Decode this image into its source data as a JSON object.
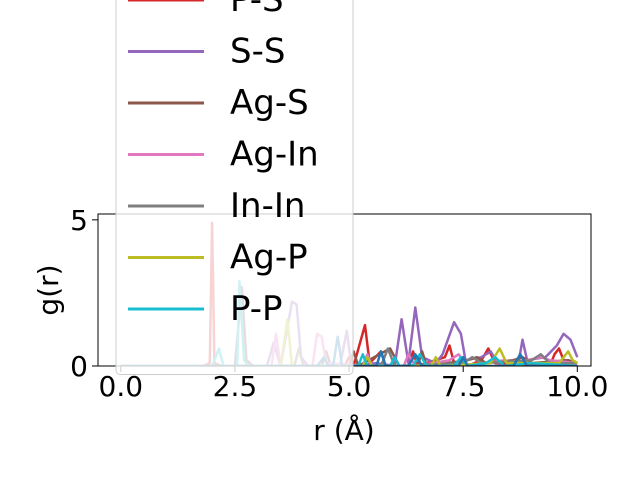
{
  "chart_data": {
    "type": "line",
    "xlabel": "r (Å)",
    "ylabel": "g(r)",
    "xlim": [
      -0.5,
      10.3
    ],
    "ylim": [
      0,
      5.2
    ],
    "xticks": [
      "0.0",
      "2.5",
      "5.0",
      "7.5",
      "10.0"
    ],
    "xtick_values": [
      0,
      2.5,
      5.0,
      7.5,
      10.0
    ],
    "yticks": [
      "0",
      "5"
    ],
    "ytick_values": [
      0,
      5
    ],
    "legend_placement": "upper-left, extends above axes",
    "grid": false,
    "series": [
      {
        "name": "P-S",
        "color": "#d62728",
        "points": [
          [
            0,
            0
          ],
          [
            1.8,
            0
          ],
          [
            1.95,
            0.1
          ],
          [
            2.0,
            4.9
          ],
          [
            2.05,
            0.1
          ],
          [
            2.2,
            0
          ],
          [
            4.9,
            0
          ],
          [
            5.0,
            0.3
          ],
          [
            5.1,
            0
          ],
          [
            5.35,
            1.4
          ],
          [
            5.45,
            0.1
          ],
          [
            5.7,
            0.5
          ],
          [
            5.8,
            0
          ],
          [
            6.3,
            0
          ],
          [
            6.4,
            0.5
          ],
          [
            6.5,
            0
          ],
          [
            7.1,
            0.3
          ],
          [
            7.2,
            0.7
          ],
          [
            7.3,
            0.1
          ],
          [
            7.6,
            0
          ],
          [
            7.9,
            0.2
          ],
          [
            8.05,
            0.6
          ],
          [
            8.2,
            0.1
          ],
          [
            9.4,
            0
          ],
          [
            9.5,
            0.4
          ],
          [
            9.6,
            0.6
          ],
          [
            9.7,
            0.2
          ],
          [
            10,
            0.1
          ]
        ]
      },
      {
        "name": "S-S",
        "color": "#9467bd",
        "points": [
          [
            0,
            0
          ],
          [
            3.2,
            0
          ],
          [
            3.35,
            0.8
          ],
          [
            3.5,
            0
          ],
          [
            3.75,
            2.2
          ],
          [
            3.85,
            2.1
          ],
          [
            3.95,
            0.3
          ],
          [
            4.1,
            0
          ],
          [
            4.8,
            0
          ],
          [
            4.95,
            1.2
          ],
          [
            5.05,
            0
          ],
          [
            5.6,
            0.1
          ],
          [
            6.0,
            0
          ],
          [
            6.15,
            1.6
          ],
          [
            6.3,
            0.1
          ],
          [
            6.45,
            2.0
          ],
          [
            6.6,
            0.3
          ],
          [
            6.9,
            0.1
          ],
          [
            7.05,
            0.4
          ],
          [
            7.3,
            1.5
          ],
          [
            7.45,
            1.1
          ],
          [
            7.55,
            0.2
          ],
          [
            7.9,
            0.3
          ],
          [
            8.1,
            0.5
          ],
          [
            8.3,
            0
          ],
          [
            8.7,
            0
          ],
          [
            8.8,
            0.9
          ],
          [
            8.9,
            0.2
          ],
          [
            9.3,
            0.3
          ],
          [
            9.55,
            0.7
          ],
          [
            9.7,
            1.1
          ],
          [
            9.85,
            0.9
          ],
          [
            10,
            0.3
          ]
        ]
      },
      {
        "name": "Ag-S",
        "color": "#8c564b",
        "points": [
          [
            0,
            0
          ],
          [
            2.5,
            0
          ],
          [
            2.65,
            2.7
          ],
          [
            2.75,
            0.2
          ],
          [
            2.9,
            0
          ],
          [
            4.4,
            0
          ],
          [
            4.5,
            0.5
          ],
          [
            4.6,
            0
          ],
          [
            5.0,
            0
          ],
          [
            5.1,
            0.5
          ],
          [
            5.2,
            0
          ],
          [
            5.9,
            0.6
          ],
          [
            6.1,
            0
          ],
          [
            6.5,
            0
          ],
          [
            6.6,
            0.5
          ],
          [
            6.7,
            0
          ],
          [
            7.6,
            0.2
          ],
          [
            7.8,
            0.3
          ],
          [
            8.0,
            0.1
          ],
          [
            8.6,
            0.2
          ],
          [
            8.8,
            0.3
          ],
          [
            9.0,
            0.1
          ],
          [
            9.8,
            0.2
          ],
          [
            10,
            0.1
          ]
        ]
      },
      {
        "name": "Ag-In",
        "color": "#e377c2",
        "points": [
          [
            0,
            0
          ],
          [
            3.3,
            0
          ],
          [
            3.4,
            1.1
          ],
          [
            3.5,
            0
          ],
          [
            4.2,
            0
          ],
          [
            4.3,
            1.1
          ],
          [
            4.4,
            1.0
          ],
          [
            4.5,
            0.1
          ],
          [
            5.3,
            0
          ],
          [
            5.4,
            0.4
          ],
          [
            5.5,
            0
          ],
          [
            6.2,
            0
          ],
          [
            6.3,
            0.4
          ],
          [
            6.45,
            0
          ],
          [
            7.2,
            0.2
          ],
          [
            7.4,
            0.4
          ],
          [
            7.6,
            0
          ],
          [
            8.4,
            0.2
          ],
          [
            8.6,
            0.1
          ],
          [
            9.2,
            0.3
          ],
          [
            9.4,
            0.2
          ],
          [
            10,
            0.1
          ]
        ]
      },
      {
        "name": "In-In",
        "color": "#7f7f7f",
        "points": [
          [
            0,
            0
          ],
          [
            3.8,
            0
          ],
          [
            3.9,
            0.6
          ],
          [
            4.0,
            0
          ],
          [
            5.7,
            0
          ],
          [
            5.85,
            0.6
          ],
          [
            6.0,
            0
          ],
          [
            7.5,
            0.1
          ],
          [
            7.7,
            0.3
          ],
          [
            7.9,
            0.1
          ],
          [
            9.0,
            0.2
          ],
          [
            9.2,
            0.4
          ],
          [
            9.4,
            0.1
          ],
          [
            10,
            0.1
          ]
        ]
      },
      {
        "name": "Ag-P",
        "color": "#bcbd22",
        "points": [
          [
            0,
            0
          ],
          [
            3.5,
            0
          ],
          [
            3.65,
            1.6
          ],
          [
            3.75,
            0
          ],
          [
            5.3,
            0
          ],
          [
            5.4,
            0.3
          ],
          [
            5.5,
            0
          ],
          [
            6.8,
            0
          ],
          [
            6.9,
            0.3
          ],
          [
            7.0,
            0
          ],
          [
            8.1,
            0.1
          ],
          [
            8.3,
            0.6
          ],
          [
            8.45,
            0.1
          ],
          [
            9.6,
            0.1
          ],
          [
            9.8,
            0.5
          ],
          [
            9.9,
            0.2
          ],
          [
            10,
            0.1
          ]
        ]
      },
      {
        "name": "P-P",
        "color": "#17becf",
        "points": [
          [
            0,
            0
          ],
          [
            2.0,
            0
          ],
          [
            2.15,
            0.6
          ],
          [
            2.25,
            0
          ],
          [
            2.55,
            0
          ],
          [
            2.6,
            2.9
          ],
          [
            2.7,
            0.2
          ],
          [
            2.8,
            0
          ],
          [
            5.2,
            0
          ],
          [
            5.3,
            0.4
          ],
          [
            5.4,
            0
          ],
          [
            5.9,
            0
          ],
          [
            6.0,
            0.3
          ],
          [
            6.1,
            0
          ],
          [
            6.4,
            0
          ],
          [
            6.55,
            0.4
          ],
          [
            6.7,
            0
          ],
          [
            7.3,
            0
          ],
          [
            7.45,
            0.3
          ],
          [
            7.6,
            0
          ],
          [
            8.0,
            0.1
          ],
          [
            8.2,
            0.3
          ],
          [
            8.4,
            0
          ],
          [
            9.0,
            0.1
          ],
          [
            10,
            0
          ]
        ]
      },
      {
        "name": "",
        "color": "#1f77b4",
        "points": [
          [
            0,
            0
          ],
          [
            4.3,
            0
          ],
          [
            4.45,
            0.3
          ],
          [
            4.55,
            0
          ],
          [
            4.65,
            0
          ],
          [
            4.75,
            1.0
          ],
          [
            4.85,
            0
          ],
          [
            5.6,
            0
          ],
          [
            5.7,
            0.5
          ],
          [
            5.8,
            0
          ],
          [
            6.3,
            0
          ],
          [
            6.45,
            0.4
          ],
          [
            6.6,
            0
          ],
          [
            7.4,
            0
          ],
          [
            7.5,
            0.3
          ],
          [
            7.6,
            0
          ],
          [
            8.6,
            0
          ],
          [
            8.75,
            0.4
          ],
          [
            8.9,
            0
          ],
          [
            10,
            0
          ]
        ]
      }
    ]
  }
}
